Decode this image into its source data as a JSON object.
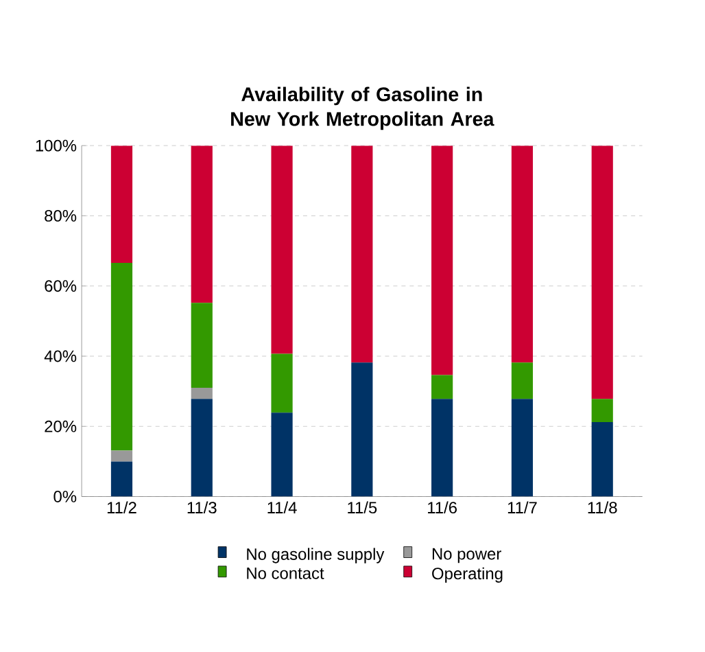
{
  "chart_data": {
    "type": "bar",
    "stacked": true,
    "title": "Availability of Gasoline in New York Metropolitan Area",
    "categories": [
      "11/2",
      "11/3",
      "11/4",
      "11/5",
      "11/6",
      "11/7",
      "11/8"
    ],
    "series": [
      {
        "name": "No gasoline supply",
        "color": "#003366",
        "values": [
          10.0,
          27.8,
          23.9,
          38.2,
          27.8,
          27.8,
          21.2
        ]
      },
      {
        "name": "No power",
        "color": "#999999",
        "values": [
          3.1,
          3.2,
          0,
          0,
          0,
          0,
          0
        ]
      },
      {
        "name": "No contact",
        "color": "#339900",
        "values": [
          53.5,
          24.2,
          16.8,
          0,
          6.8,
          10.4,
          6.6
        ]
      },
      {
        "name": "Operating",
        "color": "#cc0033",
        "values": [
          33.4,
          44.8,
          59.3,
          61.8,
          65.4,
          61.8,
          72.2
        ]
      }
    ],
    "ylim": [
      0,
      100
    ],
    "yticks": [
      {
        "value": 0,
        "label": "0%"
      },
      {
        "value": 20,
        "label": "20%"
      },
      {
        "value": 40,
        "label": "40%"
      },
      {
        "value": 60,
        "label": "60%"
      },
      {
        "value": 80,
        "label": "80%"
      },
      {
        "value": 100,
        "label": "100%"
      }
    ],
    "grid": "y",
    "legend": "bottom"
  }
}
